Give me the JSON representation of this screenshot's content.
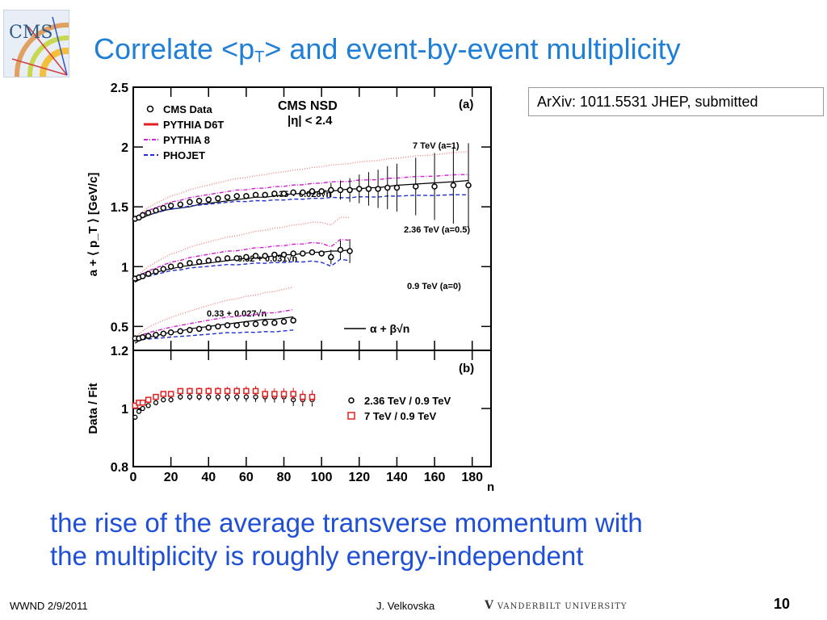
{
  "slide": {
    "title_main": "Correlate <p",
    "title_sub": "T",
    "title_end": "> and  event-by-event multiplicity",
    "reference": "ArXiv: 1011.5531 JHEP, submitted",
    "caption_line1": "the rise of the average transverse momentum with",
    "caption_line2": "the multiplicity is roughly energy-independent",
    "footer_left": "WWND 2/9/2011",
    "footer_author": "J. Velkovska",
    "footer_logo_mark": "V",
    "footer_logo_text": "VANDERBILT UNIVERSITY",
    "page_number": "10",
    "logo_text": "CMS"
  },
  "chart_data": [
    {
      "type": "scatter",
      "panel_label": "(a)",
      "title": "CMS NSD",
      "subtitle": "|η| < 2.4",
      "ylabel": "a + ⟨ p_T ⟩ [GeV/c]",
      "xlim": [
        0,
        190
      ],
      "ylim": [
        0.3,
        2.5
      ],
      "yticks": [
        0.5,
        1,
        1.5,
        2,
        2.5
      ],
      "legend": [
        "CMS Data",
        "PYTHIA D6T",
        "PYTHIA 8",
        "PHOJET"
      ],
      "legend_position": "top-left",
      "fit_legend": "α + β√n",
      "series": [
        {
          "name": "7 TeV (a=1)",
          "fit": "0.35 + 0.028√n",
          "x": [
            1,
            3,
            5,
            8,
            12,
            16,
            20,
            25,
            30,
            35,
            40,
            45,
            50,
            55,
            60,
            65,
            70,
            75,
            80,
            85,
            90,
            95,
            100,
            105,
            110,
            115,
            120,
            125,
            130,
            135,
            140,
            150,
            160,
            170,
            178
          ],
          "y": [
            1.4,
            1.41,
            1.43,
            1.45,
            1.47,
            1.49,
            1.51,
            1.52,
            1.54,
            1.55,
            1.56,
            1.57,
            1.58,
            1.59,
            1.59,
            1.6,
            1.6,
            1.61,
            1.61,
            1.62,
            1.62,
            1.63,
            1.63,
            1.64,
            1.64,
            1.64,
            1.65,
            1.65,
            1.65,
            1.66,
            1.66,
            1.67,
            1.67,
            1.68,
            1.68
          ],
          "fit_y": [
            1.38,
            1.4,
            1.41,
            1.43,
            1.45,
            1.47,
            1.48,
            1.49,
            1.5,
            1.52,
            1.53,
            1.54,
            1.55,
            1.56,
            1.57,
            1.58,
            1.58,
            1.59,
            1.6,
            1.61,
            1.61,
            1.62,
            1.63,
            1.63,
            1.64,
            1.65,
            1.65,
            1.66,
            1.66,
            1.67,
            1.68,
            1.69,
            1.7,
            1.71,
            1.72
          ]
        },
        {
          "name": "2.36 TeV (a=0.5)",
          "fit": "0.32 + 0.031√n",
          "x": [
            1,
            3,
            5,
            8,
            12,
            16,
            20,
            25,
            30,
            35,
            40,
            45,
            50,
            55,
            60,
            65,
            70,
            75,
            80,
            85,
            90,
            95,
            100,
            105,
            110,
            115
          ],
          "y": [
            0.9,
            0.91,
            0.92,
            0.94,
            0.96,
            0.98,
            1.0,
            1.01,
            1.03,
            1.04,
            1.05,
            1.06,
            1.07,
            1.07,
            1.08,
            1.09,
            1.09,
            1.1,
            1.1,
            1.11,
            1.11,
            1.12,
            1.11,
            1.08,
            1.14,
            1.13
          ],
          "fit_y": [
            0.87,
            0.89,
            0.91,
            0.93,
            0.95,
            0.97,
            0.98,
            1.0,
            1.01,
            1.02,
            1.03,
            1.04,
            1.05,
            1.06,
            1.07,
            1.07,
            1.08,
            1.09,
            1.1,
            1.1,
            1.11,
            1.12,
            1.12,
            1.13,
            1.13,
            1.14
          ]
        },
        {
          "name": "0.9 TeV (a=0)",
          "fit": "0.33 + 0.027√n",
          "x": [
            1,
            3,
            5,
            8,
            12,
            16,
            20,
            25,
            30,
            35,
            40,
            45,
            50,
            55,
            60,
            65,
            70,
            75,
            80,
            85
          ],
          "y": [
            0.4,
            0.4,
            0.41,
            0.42,
            0.43,
            0.44,
            0.45,
            0.46,
            0.47,
            0.48,
            0.49,
            0.5,
            0.51,
            0.51,
            0.52,
            0.52,
            0.53,
            0.53,
            0.54,
            0.55
          ],
          "fit_y": [
            0.36,
            0.38,
            0.39,
            0.41,
            0.42,
            0.44,
            0.45,
            0.46,
            0.48,
            0.49,
            0.5,
            0.51,
            0.52,
            0.53,
            0.54,
            0.55,
            0.56,
            0.56,
            0.57,
            0.58
          ]
        }
      ]
    },
    {
      "type": "scatter",
      "panel_label": "(b)",
      "ylabel": "Data / Fit",
      "xlabel": "n",
      "xlim": [
        0,
        190
      ],
      "ylim": [
        0.8,
        1.2
      ],
      "xticks": [
        0,
        20,
        40,
        60,
        80,
        100,
        120,
        140,
        160,
        180
      ],
      "yticks": [
        0.8,
        1,
        1.2
      ],
      "legend_position": "right",
      "series": [
        {
          "name": "2.36 TeV / 0.9 TeV",
          "x": [
            1,
            3,
            5,
            8,
            12,
            16,
            20,
            25,
            30,
            35,
            40,
            45,
            50,
            55,
            60,
            65,
            70,
            75,
            80,
            85,
            90,
            95
          ],
          "y": [
            0.97,
            0.99,
            1.0,
            1.01,
            1.02,
            1.03,
            1.03,
            1.04,
            1.04,
            1.04,
            1.04,
            1.04,
            1.04,
            1.04,
            1.04,
            1.04,
            1.04,
            1.04,
            1.04,
            1.03,
            1.03,
            1.03
          ]
        },
        {
          "name": "7 TeV / 0.9 TeV",
          "x": [
            1,
            3,
            5,
            8,
            12,
            16,
            20,
            25,
            30,
            35,
            40,
            45,
            50,
            55,
            60,
            65,
            70,
            75,
            80,
            85,
            90,
            95
          ],
          "y": [
            1.01,
            1.02,
            1.02,
            1.03,
            1.04,
            1.05,
            1.05,
            1.06,
            1.06,
            1.06,
            1.06,
            1.06,
            1.06,
            1.06,
            1.06,
            1.06,
            1.05,
            1.05,
            1.05,
            1.05,
            1.04,
            1.04
          ]
        }
      ]
    }
  ]
}
